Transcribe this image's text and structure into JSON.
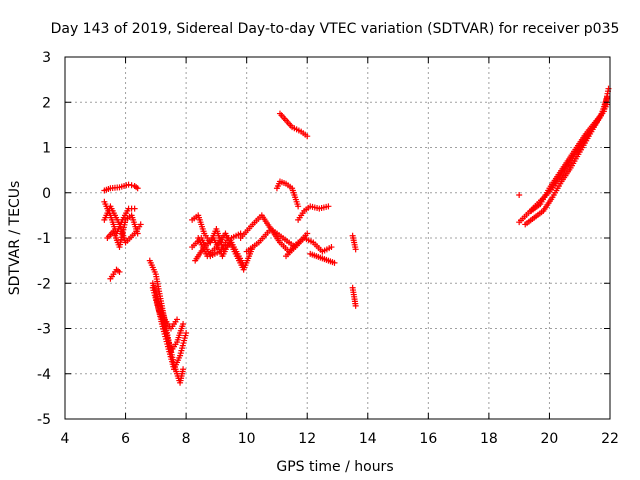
{
  "chart_data": {
    "type": "scatter",
    "title": "Day 143 of 2019, Sidereal Day-to-day VTEC variation (SDTVAR) for receiver p035",
    "xlabel": "GPS time / hours",
    "ylabel": "SDTVAR / TECUs",
    "xlim": [
      4,
      22
    ],
    "ylim": [
      -5,
      3
    ],
    "xticks": [
      "4",
      "6",
      "8",
      "10",
      "12",
      "14",
      "16",
      "18",
      "20",
      "22"
    ],
    "yticks": [
      "3",
      "2",
      "1",
      "0",
      "-1",
      "-2",
      "-3",
      "-4",
      "-5"
    ],
    "grid": true,
    "marker": "+",
    "color": "#ff0000",
    "segments": [
      {
        "name": "arc-1a",
        "x": [
          5.3,
          5.5,
          5.8,
          6.1,
          6.3,
          6.4
        ],
        "y": [
          0.05,
          0.1,
          0.12,
          0.18,
          0.15,
          0.1
        ]
      },
      {
        "name": "arc-1b",
        "x": [
          5.3,
          5.5,
          5.7,
          5.9,
          6.1,
          6.3
        ],
        "y": [
          -0.2,
          -0.5,
          -0.9,
          -0.6,
          -0.35,
          -0.35
        ]
      },
      {
        "name": "arc-1c",
        "x": [
          5.3,
          5.5,
          5.8,
          6.0,
          6.3,
          6.5
        ],
        "y": [
          -0.6,
          -0.3,
          -0.7,
          -1.1,
          -0.9,
          -0.7
        ]
      },
      {
        "name": "arc-1d",
        "x": [
          5.4,
          5.6,
          5.8,
          6.0,
          6.2,
          6.4
        ],
        "y": [
          -1.0,
          -0.85,
          -1.2,
          -0.6,
          -0.5,
          -0.9
        ]
      },
      {
        "name": "arc-1e",
        "x": [
          5.5,
          5.6,
          5.7,
          5.8
        ],
        "y": [
          -1.9,
          -1.8,
          -1.7,
          -1.75
        ]
      },
      {
        "name": "arc-2a",
        "x": [
          6.8,
          7.0,
          7.2,
          7.4,
          7.6,
          7.8,
          7.9
        ],
        "y": [
          -1.5,
          -1.8,
          -2.5,
          -3.2,
          -3.8,
          -4.2,
          -3.9
        ]
      },
      {
        "name": "arc-2b",
        "x": [
          6.9,
          7.1,
          7.3,
          7.5,
          7.7,
          7.9
        ],
        "y": [
          -2.1,
          -2.6,
          -3.0,
          -3.5,
          -3.3,
          -2.9
        ]
      },
      {
        "name": "arc-2c",
        "x": [
          7.0,
          7.2,
          7.4,
          7.6,
          7.8,
          8.0
        ],
        "y": [
          -2.3,
          -2.9,
          -3.4,
          -3.9,
          -3.6,
          -3.1
        ]
      },
      {
        "name": "arc-2d",
        "x": [
          6.9,
          7.1,
          7.3,
          7.5,
          7.7
        ],
        "y": [
          -2.0,
          -2.4,
          -2.8,
          -3.0,
          -2.8
        ]
      },
      {
        "name": "arc-3a",
        "x": [
          8.2,
          8.5,
          8.8,
          9.1,
          9.5,
          9.9
        ],
        "y": [
          -1.2,
          -1.0,
          -1.4,
          -1.3,
          -1.1,
          -1.6
        ]
      },
      {
        "name": "arc-3b",
        "x": [
          8.2,
          8.4,
          8.6,
          8.8,
          9.0,
          9.2,
          9.4
        ],
        "y": [
          -0.6,
          -0.5,
          -0.9,
          -1.1,
          -0.8,
          -1.2,
          -1.0
        ]
      },
      {
        "name": "arc-3c",
        "x": [
          8.4,
          8.7,
          9.0,
          9.3,
          9.6,
          9.9,
          10.2
        ],
        "y": [
          -1.0,
          -1.4,
          -1.2,
          -0.9,
          -1.3,
          -1.7,
          -1.2
        ]
      },
      {
        "name": "arc-3d",
        "x": [
          8.3,
          8.6,
          8.9,
          9.2,
          9.5,
          9.8
        ],
        "y": [
          -1.5,
          -1.2,
          -1.0,
          -1.4,
          -1.0,
          -0.9
        ]
      },
      {
        "name": "arc-4a",
        "x": [
          9.8,
          10.2,
          10.5,
          10.8,
          11.1,
          11.4,
          11.7
        ],
        "y": [
          -1.0,
          -0.7,
          -0.5,
          -0.8,
          -1.1,
          -1.3,
          -1.1
        ]
      },
      {
        "name": "arc-4b",
        "x": [
          10.0,
          10.4,
          10.8,
          11.2,
          11.6,
          12.0
        ],
        "y": [
          -1.3,
          -1.1,
          -0.8,
          -1.0,
          -1.2,
          -0.9
        ]
      },
      {
        "name": "arc-4c",
        "x": [
          11.0,
          11.1,
          11.3,
          11.5,
          11.7
        ],
        "y": [
          0.1,
          0.25,
          0.2,
          0.1,
          -0.3
        ]
      },
      {
        "name": "arc-4d",
        "x": [
          11.7,
          11.9,
          12.1,
          12.4,
          12.7
        ],
        "y": [
          -0.6,
          -0.4,
          -0.3,
          -0.35,
          -0.3
        ]
      },
      {
        "name": "arc-4e",
        "x": [
          11.1,
          11.3,
          11.5,
          11.8,
          12.0
        ],
        "y": [
          1.75,
          1.6,
          1.45,
          1.35,
          1.25
        ]
      },
      {
        "name": "arc-4f",
        "x": [
          11.3,
          11.6,
          11.9,
          12.2,
          12.5,
          12.8
        ],
        "y": [
          -1.4,
          -1.2,
          -1.0,
          -1.1,
          -1.3,
          -1.2
        ]
      },
      {
        "name": "arc-4g",
        "x": [
          12.1,
          12.3,
          12.5,
          12.7,
          12.9
        ],
        "y": [
          -1.35,
          -1.4,
          -1.45,
          -1.5,
          -1.55
        ]
      },
      {
        "name": "arc-5a",
        "x": [
          13.5,
          13.55,
          13.6
        ],
        "y": [
          -0.95,
          -1.1,
          -1.25
        ]
      },
      {
        "name": "arc-5b",
        "x": [
          13.5,
          13.55,
          13.6
        ],
        "y": [
          -2.1,
          -2.3,
          -2.5
        ]
      },
      {
        "name": "arc-6a",
        "x": [
          19.0,
          19.3,
          19.6,
          19.9,
          20.2,
          20.5,
          20.8,
          21.1,
          21.4,
          21.7,
          21.9
        ],
        "y": [
          -0.65,
          -0.45,
          -0.25,
          -0.05,
          0.2,
          0.5,
          0.8,
          1.1,
          1.4,
          1.7,
          2.1
        ]
      },
      {
        "name": "arc-6b",
        "x": [
          19.4,
          19.7,
          20.0,
          20.3,
          20.6,
          20.9,
          21.2,
          21.5,
          21.8,
          21.95
        ],
        "y": [
          -0.4,
          -0.25,
          0.1,
          0.4,
          0.7,
          1.0,
          1.3,
          1.55,
          1.8,
          2.3
        ]
      },
      {
        "name": "arc-6c",
        "x": [
          19.2,
          19.5,
          19.8,
          20.1,
          20.4,
          20.7,
          21.0,
          21.3,
          21.6,
          21.9
        ],
        "y": [
          -0.7,
          -0.55,
          -0.4,
          -0.1,
          0.25,
          0.55,
          0.9,
          1.25,
          1.6,
          1.95
        ]
      },
      {
        "name": "arc-6d",
        "x": [
          19.0
        ],
        "y": [
          -0.05
        ]
      }
    ]
  }
}
